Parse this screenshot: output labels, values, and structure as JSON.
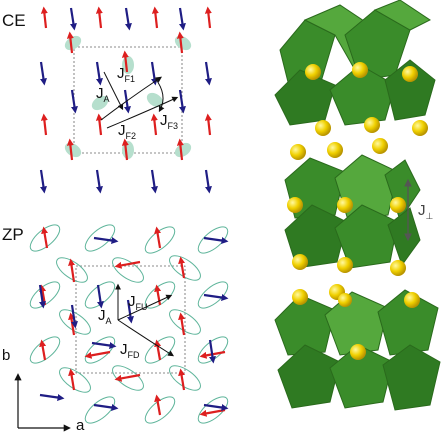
{
  "left_panel": {
    "ce": {
      "label": "CE",
      "couplings": {
        "ja": "J",
        "ja_sub": "A",
        "jf1": "J",
        "jf1_sub": "F1",
        "jf2": "J",
        "jf2_sub": "F2",
        "jf3": "J",
        "jf3_sub": "F3"
      }
    },
    "zp": {
      "label": "ZP",
      "couplings": {
        "ja": "J",
        "ja_sub": "A",
        "jfu": "J",
        "jfu_sub": "FU",
        "jfd": "J",
        "jfd_sub": "FD"
      }
    },
    "axes": {
      "b": "b",
      "a": "a"
    }
  },
  "right_panel": {
    "interlayer": {
      "label": "J",
      "sub": "⊥"
    }
  },
  "colors": {
    "spin_up": "#dd1f1f",
    "spin_down": "#1f1d84",
    "orbital_fill": "#b6dfcd",
    "orbital_outline": "#5fb59b",
    "octahedron": "#3a8c2a",
    "octahedron_dark": "#2a6a1c",
    "octahedron_light": "#55a83d",
    "a_site": "#f2d200"
  }
}
